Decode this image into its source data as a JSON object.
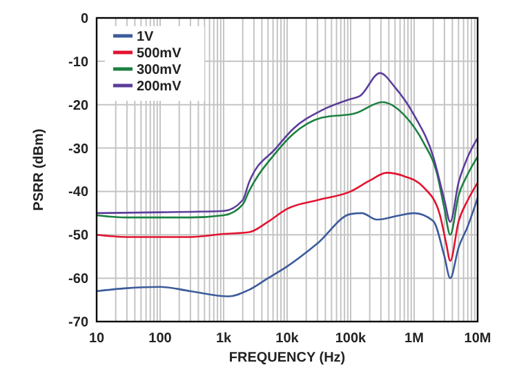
{
  "chart_data": {
    "type": "line",
    "xlabel": "FREQUENCY (Hz)",
    "ylabel": "PSRR (dBm)",
    "log": "x",
    "grid": true,
    "legend": "top left",
    "line_style": "solid",
    "marker": "none",
    "xlim": [
      10,
      10000000
    ],
    "ylim": [
      -70,
      0
    ],
    "xticks": [
      {
        "value": 10,
        "label": "10"
      },
      {
        "value": 20,
        "label": null
      },
      {
        "value": 30,
        "label": null
      },
      {
        "value": 40,
        "label": null
      },
      {
        "value": 50,
        "label": null
      },
      {
        "value": 60,
        "label": null
      },
      {
        "value": 70,
        "label": null
      },
      {
        "value": 80,
        "label": null
      },
      {
        "value": 90,
        "label": null
      },
      {
        "value": 100,
        "label": "100"
      },
      {
        "value": 200,
        "label": null
      },
      {
        "value": 300,
        "label": null
      },
      {
        "value": 400,
        "label": null
      },
      {
        "value": 500,
        "label": null
      },
      {
        "value": 600,
        "label": null
      },
      {
        "value": 700,
        "label": null
      },
      {
        "value": 800,
        "label": null
      },
      {
        "value": 900,
        "label": null
      },
      {
        "value": 1000,
        "label": "1k"
      },
      {
        "value": 2000,
        "label": null
      },
      {
        "value": 3000,
        "label": null
      },
      {
        "value": 4000,
        "label": null
      },
      {
        "value": 5000,
        "label": null
      },
      {
        "value": 6000,
        "label": null
      },
      {
        "value": 7000,
        "label": null
      },
      {
        "value": 8000,
        "label": null
      },
      {
        "value": 9000,
        "label": null
      },
      {
        "value": 10000,
        "label": "10k"
      },
      {
        "value": 20000,
        "label": null
      },
      {
        "value": 30000,
        "label": null
      },
      {
        "value": 40000,
        "label": null
      },
      {
        "value": 50000,
        "label": null
      },
      {
        "value": 60000,
        "label": null
      },
      {
        "value": 70000,
        "label": null
      },
      {
        "value": 80000,
        "label": null
      },
      {
        "value": 90000,
        "label": null
      },
      {
        "value": 100000,
        "label": "100k"
      },
      {
        "value": 200000,
        "label": null
      },
      {
        "value": 300000,
        "label": null
      },
      {
        "value": 400000,
        "label": null
      },
      {
        "value": 500000,
        "label": null
      },
      {
        "value": 600000,
        "label": null
      },
      {
        "value": 700000,
        "label": null
      },
      {
        "value": 800000,
        "label": null
      },
      {
        "value": 900000,
        "label": null
      },
      {
        "value": 1000000,
        "label": "1M"
      },
      {
        "value": 2000000,
        "label": null
      },
      {
        "value": 3000000,
        "label": null
      },
      {
        "value": 4000000,
        "label": null
      },
      {
        "value": 5000000,
        "label": null
      },
      {
        "value": 6000000,
        "label": null
      },
      {
        "value": 7000000,
        "label": null
      },
      {
        "value": 8000000,
        "label": null
      },
      {
        "value": 9000000,
        "label": null
      },
      {
        "value": 10000000,
        "label": "10M"
      }
    ],
    "yticks": [
      -70,
      -60,
      -50,
      -40,
      -30,
      -20,
      -10,
      0
    ],
    "series": [
      {
        "name": "1V",
        "color": "#3b5b9b",
        "x": [
          10,
          30,
          100,
          300,
          1200,
          2500,
          5000,
          10000,
          30000,
          100000,
          150000,
          260000,
          600000,
          1000000,
          2000000,
          3000000,
          3700000,
          5000000,
          7000000,
          10000000
        ],
        "values": [
          -63,
          -62.3,
          -62,
          -63,
          -64.2,
          -62.7,
          -60,
          -57.3,
          -52,
          -45.2,
          -45,
          -46.5,
          -45.5,
          -45,
          -46.8,
          -55,
          -60,
          -53,
          -48,
          -41.5
        ]
      },
      {
        "name": "500mV",
        "color": "#e3122f",
        "x": [
          10,
          30,
          300,
          1000,
          2500,
          5000,
          10000,
          30000,
          100000,
          200000,
          370000,
          700000,
          1400000,
          2500000,
          3200000,
          3700000,
          5000000,
          7000000,
          10000000
        ],
        "values": [
          -50,
          -50.5,
          -50.5,
          -49.8,
          -49.4,
          -47,
          -44,
          -42,
          -40,
          -37.5,
          -35.7,
          -36.5,
          -39,
          -45,
          -52,
          -56,
          -47,
          -42,
          -38
        ]
      },
      {
        "name": "300mV",
        "color": "#1b8040",
        "x": [
          10,
          30,
          300,
          1000,
          2000,
          2500,
          6700,
          12600,
          35000,
          117000,
          316000,
          700000,
          1400000,
          2300000,
          3000000,
          3700000,
          5000000,
          7000000,
          10000000
        ],
        "values": [
          -45.5,
          -46,
          -46,
          -45.5,
          -43,
          -40,
          -31,
          -26.7,
          -23,
          -22,
          -19.4,
          -22.4,
          -28.7,
          -36,
          -44,
          -50,
          -41,
          -36,
          -32
        ]
      },
      {
        "name": "200mV",
        "color": "#5b3d9b",
        "x": [
          10,
          100,
          1000,
          2000,
          2500,
          6700,
          12600,
          35000,
          100000,
          140000,
          290000,
          500000,
          1000000,
          2000000,
          3000000,
          3700000,
          5000000,
          7000000,
          10000000
        ],
        "values": [
          -45,
          -44.8,
          -44.5,
          -42,
          -38,
          -30,
          -25.5,
          -21.3,
          -18.7,
          -18,
          -12.7,
          -16,
          -22.4,
          -32,
          -42,
          -47,
          -38,
          -32,
          -27.7
        ]
      }
    ]
  }
}
